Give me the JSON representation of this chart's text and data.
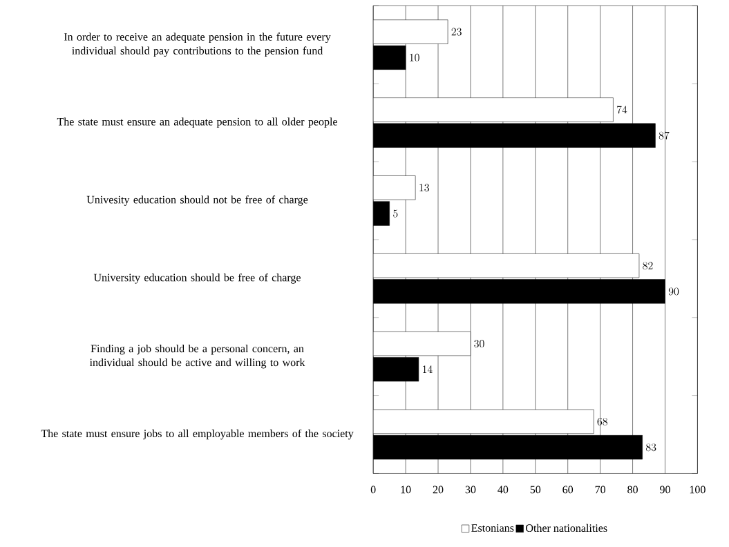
{
  "chart_data": {
    "type": "bar",
    "orientation": "horizontal",
    "categories": [
      "In order to receive an adequate pension in the future every individual should pay contributions to the pension fund",
      "The state must ensure an adequate pension to all older people",
      "Univesity education should not be free of charge",
      "University education should be free of charge",
      "Finding a job should be a personal concern, an individual should be active and willing to work",
      "The state must ensure jobs to all employable members of the society"
    ],
    "series": [
      {
        "name": "Estonians",
        "color": "#ffffff",
        "values": [
          23,
          74,
          13,
          82,
          30,
          68
        ]
      },
      {
        "name": "Other nationalities",
        "color": "#000000",
        "values": [
          10,
          87,
          5,
          90,
          14,
          83
        ]
      }
    ],
    "xlim": [
      0,
      100
    ],
    "xticks": [
      0,
      10,
      20,
      30,
      40,
      50,
      60,
      70,
      80,
      90,
      100
    ],
    "grid": "x",
    "legend": "bottom",
    "data_labels": true
  }
}
